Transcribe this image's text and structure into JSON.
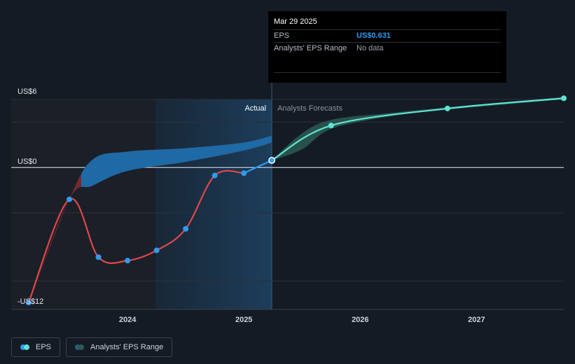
{
  "chart_data": {
    "type": "line",
    "y_ticks": [
      {
        "value": 6,
        "label": "US$6"
      },
      {
        "value": 0,
        "label": "US$0"
      },
      {
        "value": -12,
        "label": "-US$12"
      }
    ],
    "x_ticks": [
      {
        "value": 2024,
        "label": "2024"
      },
      {
        "value": 2025,
        "label": "2025"
      },
      {
        "value": 2026,
        "label": "2026"
      },
      {
        "value": 2027,
        "label": "2027"
      }
    ],
    "ylim": [
      -12.5,
      6
    ],
    "xlim": [
      2023.0,
      2027.75
    ],
    "divider_x": 2025.24,
    "actual_label": "Actual",
    "forecast_label": "Analysts Forecasts",
    "series": [
      {
        "name": "EPS",
        "x": [
          2023.15,
          2023.5,
          2023.75,
          2024.0,
          2024.25,
          2024.5,
          2024.75,
          2025.0,
          2025.24
        ],
        "y": [
          -11.9,
          -2.8,
          -7.9,
          -8.2,
          -7.3,
          -5.4,
          -0.7,
          -0.5,
          0.63
        ]
      },
      {
        "name": "Analysts' EPS Range",
        "type": "band",
        "x": [
          2023.15,
          2023.5,
          2023.7,
          2024.0,
          2024.5,
          2025.0,
          2025.24
        ],
        "upper": [
          -11.9,
          -2.8,
          0.7,
          1.4,
          1.7,
          2.2,
          2.8
        ],
        "lower": [
          -11.9,
          -2.8,
          -1.6,
          -0.3,
          0.5,
          1.5,
          2.2
        ]
      },
      {
        "name": "EPS forecast",
        "x": [
          2025.24,
          2025.75,
          2026.75,
          2027.75
        ],
        "y": [
          0.63,
          3.7,
          5.2,
          6.1
        ]
      },
      {
        "name": "Analysts' EPS Range forecast",
        "type": "band",
        "x": [
          2025.24,
          2025.5,
          2025.75,
          2026.25,
          2026.75,
          2027.75
        ],
        "upper": [
          0.63,
          3.0,
          4.2,
          4.8,
          5.3,
          6.2
        ],
        "lower": [
          0.63,
          1.6,
          3.4,
          4.5,
          5.1,
          6.0
        ]
      }
    ],
    "colors": {
      "eps_actual": "#e0474c",
      "eps_current": "#2f9bf0",
      "eps_forecast": "#5fe3d4",
      "range_actual": "#8a2a32",
      "range_past_year": "#1e6aa6",
      "range_forecast": "#2c5a54",
      "markers": "#2f9bf0"
    }
  },
  "tooltip": {
    "date": "Mar 29 2025",
    "rows": [
      {
        "label": "EPS",
        "value": "US$0.631"
      },
      {
        "label": "Analysts' EPS Range",
        "value": "No data"
      }
    ]
  },
  "legend": {
    "items": [
      {
        "label": "EPS",
        "colors": [
          "#2f9bf0",
          "#5fe3d4"
        ]
      },
      {
        "label": "Analysts' EPS Range",
        "colors": [
          "#2c5a7a",
          "#2c5a54"
        ]
      }
    ]
  }
}
